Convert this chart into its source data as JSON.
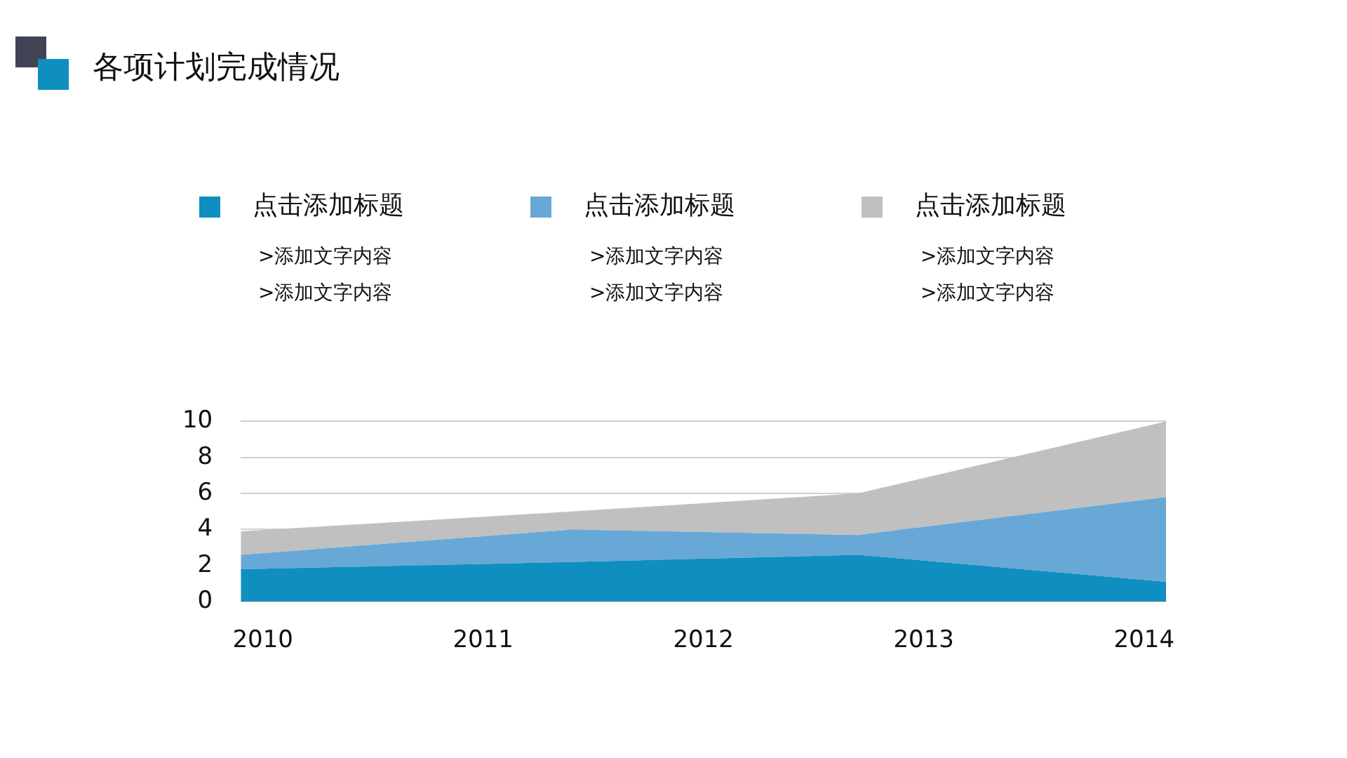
{
  "chart_data": {
    "type": "area",
    "title": "各项计划完成情况",
    "stacked": true,
    "x": [
      2009.9,
      2011.4,
      2012.7,
      2014.1
    ],
    "xlim": [
      2009.9,
      2014.1
    ],
    "xticks": [
      2010,
      2011,
      2012,
      2013,
      2014
    ],
    "ylim": [
      0,
      10
    ],
    "yticks": [
      0,
      2,
      4,
      6,
      8,
      10
    ],
    "grid": "y",
    "legend": "top",
    "series": [
      {
        "name": "点击添加标题",
        "color": "#0f8fc0",
        "values": [
          1.8,
          2.2,
          2.6,
          1.1
        ]
      },
      {
        "name": "点击添加标题",
        "color": "#68a8d6",
        "values": [
          0.8,
          1.8,
          1.1,
          4.7
        ]
      },
      {
        "name": "点击添加标题",
        "color": "#c0c0c0",
        "values": [
          1.3,
          1.0,
          2.3,
          4.2
        ]
      }
    ],
    "annotations": [
      ">添加文字内容",
      ">添加文字内容",
      ">添加文字内容",
      ">添加文字内容",
      ">添加文字内容",
      ">添加文字内容"
    ]
  }
}
